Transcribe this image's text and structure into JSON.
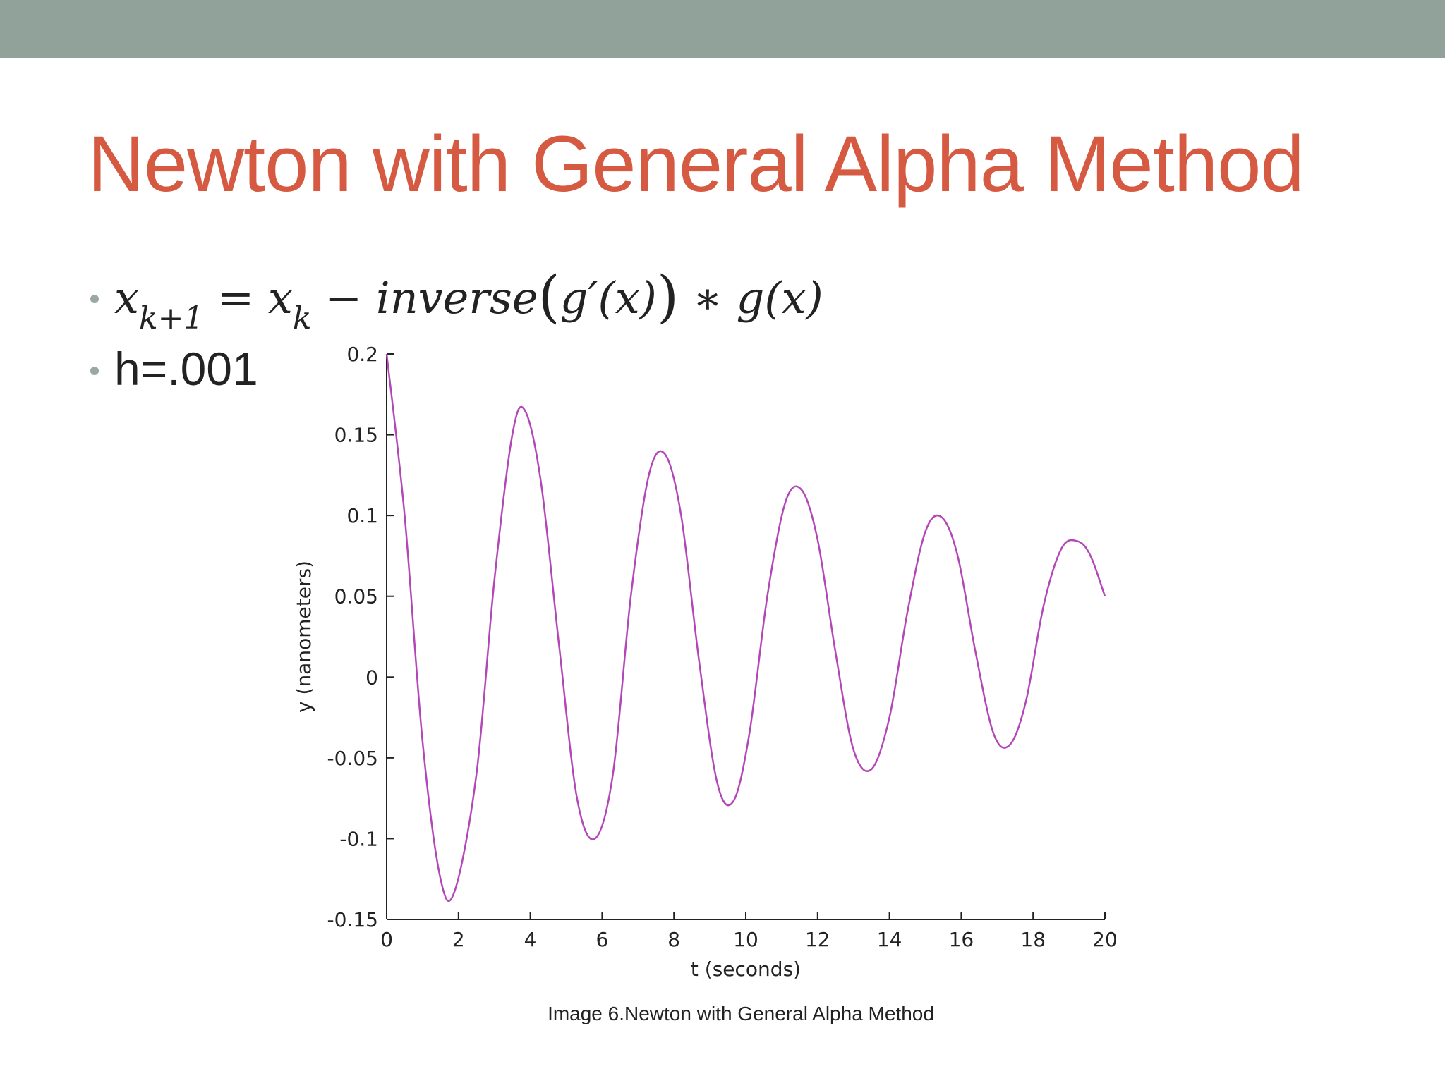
{
  "slide": {
    "title": "Newton with General Alpha Method",
    "formula": {
      "lhs_var": "x",
      "lhs_sub": "k+1",
      "equals": " = ",
      "rhs_var": "x",
      "rhs_sub": "k",
      "minus": " − ",
      "func": "inverse",
      "open_paren": "(",
      "inner": "g′(x)",
      "close_paren": ")",
      "times": " ∗ ",
      "tail": "g(x)"
    },
    "step_text": "h=.001",
    "caption": "Image 6.Newton with General Alpha Method"
  },
  "colors": {
    "top_band": "#90A29A",
    "title": "#D55A41",
    "bullet": "#9aa8a3",
    "series_line": "#b347b8",
    "axis": "#222222"
  },
  "chart_data": {
    "type": "line",
    "title": "",
    "xlabel": "t (seconds)",
    "ylabel": "y (nanometers)",
    "xlim": [
      0,
      20
    ],
    "ylim": [
      -0.15,
      0.2
    ],
    "xticks": [
      0,
      2,
      4,
      6,
      8,
      10,
      12,
      14,
      16,
      18,
      20
    ],
    "yticks": [
      0.2,
      0.15,
      0.1,
      0.05,
      0,
      -0.05,
      -0.1,
      -0.15
    ],
    "ytick_labels": [
      "0.2",
      "0.15",
      "0.1",
      "0.05",
      "0",
      "-0.05",
      "-0.1",
      "-0.15"
    ],
    "grid": false,
    "series": [
      {
        "x": [
          0,
          0.5,
          1.0,
          1.5,
          1.9,
          2.5,
          3.0,
          3.5,
          3.85,
          4.3,
          4.8,
          5.3,
          5.8,
          6.3,
          6.8,
          7.3,
          7.75,
          8.2,
          8.7,
          9.2,
          9.65,
          10.1,
          10.6,
          11.1,
          11.55,
          12.0,
          12.5,
          13.0,
          13.5,
          14.0,
          14.5,
          15.0,
          15.45,
          15.9,
          16.4,
          16.9,
          17.35,
          17.8,
          18.3,
          18.8,
          19.25,
          19.6,
          20.0
        ],
        "y": [
          0.2,
          0.1,
          -0.04,
          -0.125,
          -0.132,
          -0.06,
          0.06,
          0.15,
          0.165,
          0.12,
          0.02,
          -0.075,
          -0.1,
          -0.06,
          0.05,
          0.125,
          0.138,
          0.1,
          0.01,
          -0.065,
          -0.077,
          -0.035,
          0.05,
          0.108,
          0.116,
          0.085,
          0.015,
          -0.045,
          -0.057,
          -0.025,
          0.04,
          0.09,
          0.099,
          0.075,
          0.015,
          -0.035,
          -0.042,
          -0.015,
          0.045,
          0.08,
          0.084,
          0.075,
          0.05
        ]
      }
    ]
  }
}
